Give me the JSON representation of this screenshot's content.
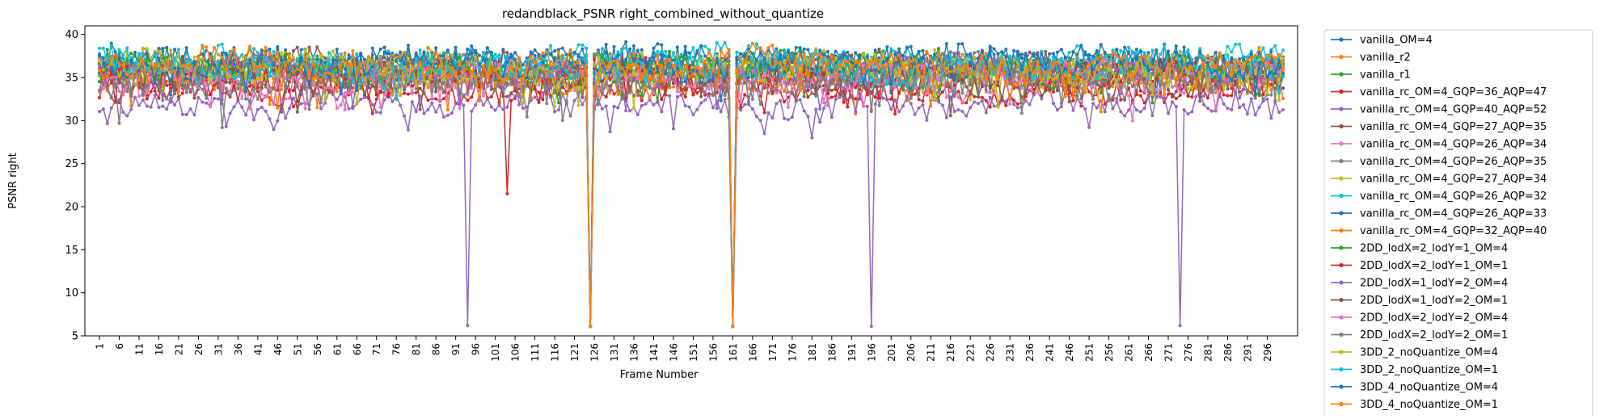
{
  "chart_data": {
    "type": "line",
    "title": "redandblack_PSNR right_combined_without_quantize",
    "xlabel": "Frame Number",
    "ylabel": "PSNR right",
    "xlim": [
      1,
      300
    ],
    "ylim": [
      5,
      41
    ],
    "y_ticks": [
      5,
      10,
      15,
      20,
      25,
      30,
      35,
      40
    ],
    "x_tick_labels": [
      "1",
      "6",
      "11",
      "16",
      "21",
      "26",
      "31",
      "36",
      "41",
      "46",
      "51",
      "56",
      "61",
      "66",
      "71",
      "76",
      "81",
      "86",
      "91",
      "96",
      "101",
      "106",
      "111",
      "116",
      "121",
      "126",
      "131",
      "136",
      "141",
      "146",
      "151",
      "156",
      "161",
      "166",
      "171",
      "176",
      "181",
      "186",
      "191",
      "196",
      "201",
      "206",
      "211",
      "216",
      "221",
      "226",
      "231",
      "236",
      "241",
      "246",
      "251",
      "256",
      "261",
      "266",
      "271",
      "276",
      "281",
      "286",
      "291",
      "296"
    ],
    "legend_position": "outside-right",
    "grid": false,
    "series": [
      {
        "name": "vanilla_OM=4",
        "color": "#1f77b4",
        "base": 36.6,
        "amp": 1.7,
        "seed": 1,
        "drops": [
          [
            125,
            6.1
          ],
          [
            161,
            6.1
          ]
        ]
      },
      {
        "name": "vanilla_r2",
        "color": "#ff7f0e",
        "base": 35.9,
        "amp": 1.8,
        "seed": 2,
        "drops": [
          [
            125,
            6.1
          ],
          [
            161,
            6.1
          ]
        ]
      },
      {
        "name": "vanilla_r1",
        "color": "#2ca02c",
        "base": 36.2,
        "amp": 1.6,
        "seed": 3,
        "drops": [
          [
            125,
            6.1
          ],
          [
            161,
            6.1
          ]
        ]
      },
      {
        "name": "vanilla_rc_OM=4_GQP=36_AQP=47",
        "color": "#d62728",
        "base": 33.4,
        "amp": 1.2,
        "seed": 4,
        "drops": [
          [
            125,
            6.1
          ],
          [
            161,
            6.1
          ],
          [
            104,
            21.5
          ]
        ]
      },
      {
        "name": "vanilla_rc_OM=4_GQP=40_AQP=52",
        "color": "#9467bd",
        "base": 31.8,
        "amp": 1.3,
        "seed": 5,
        "drops": [
          [
            94,
            6.2
          ],
          [
            125,
            6.1
          ],
          [
            161,
            6.1
          ],
          [
            196,
            6.1
          ],
          [
            274,
            6.2
          ]
        ]
      },
      {
        "name": "vanilla_rc_OM=4_GQP=27_AQP=35",
        "color": "#8c564b",
        "base": 36.4,
        "amp": 1.5,
        "seed": 6,
        "drops": [
          [
            125,
            6.1
          ],
          [
            161,
            6.1
          ]
        ]
      },
      {
        "name": "vanilla_rc_OM=4_GQP=26_AQP=34",
        "color": "#e377c2",
        "base": 35.2,
        "amp": 1.6,
        "seed": 7,
        "drops": [
          [
            125,
            6.1
          ],
          [
            161,
            6.1
          ]
        ]
      },
      {
        "name": "vanilla_rc_OM=4_GQP=26_AQP=35",
        "color": "#7f7f7f",
        "base": 36.0,
        "amp": 1.5,
        "seed": 8,
        "drops": [
          [
            125,
            6.1
          ],
          [
            161,
            6.1
          ]
        ]
      },
      {
        "name": "vanilla_rc_OM=4_GQP=27_AQP=34",
        "color": "#bcbd22",
        "base": 35.6,
        "amp": 1.7,
        "seed": 9,
        "drops": [
          [
            125,
            6.1
          ],
          [
            161,
            6.1
          ]
        ]
      },
      {
        "name": "vanilla_rc_OM=4_GQP=26_AQP=32",
        "color": "#17becf",
        "base": 37.0,
        "amp": 1.4,
        "seed": 10,
        "drops": [
          [
            125,
            6.1
          ],
          [
            161,
            6.1
          ]
        ]
      },
      {
        "name": "vanilla_rc_OM=4_GQP=26_AQP=33",
        "color": "#1f77b4",
        "base": 36.8,
        "amp": 1.5,
        "seed": 11,
        "drops": [
          [
            125,
            6.1
          ],
          [
            161,
            6.1
          ]
        ]
      },
      {
        "name": "vanilla_rc_OM=4_GQP=32_AQP=40",
        "color": "#ff7f0e",
        "base": 34.9,
        "amp": 1.4,
        "seed": 12,
        "drops": [
          [
            125,
            6.1
          ],
          [
            161,
            6.1
          ]
        ]
      },
      {
        "name": "2DD_lodX=2_lodY=1_OM=4",
        "color": "#2ca02c",
        "base": 35.8,
        "amp": 1.7,
        "seed": 13,
        "drops": [
          [
            125,
            6.1
          ],
          [
            161,
            6.1
          ]
        ]
      },
      {
        "name": "2DD_lodX=2_lodY=1_OM=1",
        "color": "#d62728",
        "base": 35.0,
        "amp": 1.8,
        "seed": 14,
        "drops": [
          [
            125,
            6.1
          ],
          [
            161,
            6.1
          ]
        ]
      },
      {
        "name": "2DD_lodX=1_lodY=2_OM=4",
        "color": "#9467bd",
        "base": 35.4,
        "amp": 1.7,
        "seed": 15,
        "drops": [
          [
            125,
            6.1
          ],
          [
            161,
            6.1
          ]
        ]
      },
      {
        "name": "2DD_lodX=1_lodY=2_OM=1",
        "color": "#8c564b",
        "base": 35.1,
        "amp": 1.8,
        "seed": 16,
        "drops": [
          [
            125,
            6.1
          ],
          [
            161,
            6.1
          ]
        ]
      },
      {
        "name": "2DD_lodX=2_lodY=2_OM=4",
        "color": "#e377c2",
        "base": 34.8,
        "amp": 1.9,
        "seed": 17,
        "drops": [
          [
            125,
            6.1
          ],
          [
            161,
            6.1
          ]
        ]
      },
      {
        "name": "2DD_lodX=2_lodY=2_OM=1",
        "color": "#7f7f7f",
        "base": 34.6,
        "amp": 1.9,
        "seed": 18,
        "drops": [
          [
            125,
            6.1
          ],
          [
            161,
            6.1
          ]
        ]
      },
      {
        "name": "3DD_2_noQuantize_OM=4",
        "color": "#bcbd22",
        "base": 36.1,
        "amp": 1.6,
        "seed": 19,
        "drops": [
          [
            125,
            6.1
          ],
          [
            161,
            6.1
          ]
        ]
      },
      {
        "name": "3DD_2_noQuantize_OM=1",
        "color": "#17becf",
        "base": 36.3,
        "amp": 1.6,
        "seed": 20,
        "drops": [
          [
            125,
            6.1
          ],
          [
            161,
            6.1
          ]
        ]
      },
      {
        "name": "3DD_4_noQuantize_OM=4",
        "color": "#1f77b4",
        "base": 36.7,
        "amp": 1.6,
        "seed": 21,
        "drops": [
          [
            125,
            6.1
          ],
          [
            161,
            6.1
          ]
        ]
      },
      {
        "name": "3DD_4_noQuantize_OM=1",
        "color": "#ff7f0e",
        "base": 36.5,
        "amp": 1.6,
        "seed": 22,
        "drops": [
          [
            125,
            6.1
          ],
          [
            161,
            6.1
          ]
        ]
      }
    ]
  }
}
